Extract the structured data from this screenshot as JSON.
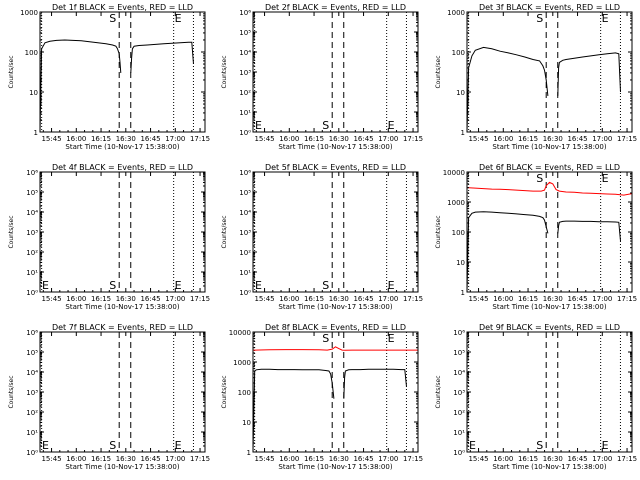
{
  "figure": {
    "xlabel": "Start Time (10-Nov-17 15:38:00)",
    "ylabel": "Counts/sec",
    "x_ticks": [
      "15:45",
      "16:00",
      "16:15",
      "16:30",
      "16:45",
      "17:00",
      "17:15"
    ],
    "x_tick_minutes": [
      7,
      22,
      37,
      52,
      67,
      82,
      97
    ],
    "x_range_minutes": [
      0,
      100
    ],
    "start_marker_minutes": [
      48,
      55
    ],
    "end_marker_minutes": [
      81,
      93
    ],
    "start_marker_label": "S",
    "end_marker_label": "E",
    "colors": {
      "events": "#000000",
      "lld": "#ff0000"
    }
  },
  "chart_data": [
    {
      "type": "line",
      "title": "Det 1f BLACK = Events, RED = LLD",
      "yscale": "log",
      "ylim": [
        1,
        1000
      ],
      "ytick_values": [
        1,
        10,
        100,
        1000
      ],
      "ytick_labels": [
        "1",
        "10",
        "100",
        "1000"
      ],
      "series": [
        {
          "color": "#000000",
          "segments": [
            {
              "x": [
                0,
                1,
                3,
                6,
                10,
                15,
                20,
                25,
                30,
                35,
                40,
                44,
                46,
                47,
                48,
                48.5,
                49
              ],
              "y": [
                1,
                120,
                170,
                185,
                195,
                200,
                195,
                190,
                180,
                170,
                160,
                150,
                140,
                120,
                90,
                55,
                30
              ]
            },
            {
              "x": [
                55,
                55.5,
                56,
                57,
                60,
                65,
                70,
                75,
                80,
                85,
                90,
                92,
                93
              ],
              "y": [
                30,
                70,
                120,
                140,
                145,
                150,
                155,
                160,
                165,
                170,
                175,
                175,
                50
              ]
            }
          ]
        }
      ],
      "marker_labels_row": "top"
    },
    {
      "type": "line",
      "title": "Det 2f BLACK = Events, RED = LLD",
      "yscale": "log",
      "ylim": [
        1,
        1000000
      ],
      "ytick_values": [
        1,
        10,
        100,
        1000,
        10000,
        100000,
        1000000
      ],
      "ytick_labels": [
        "10⁰",
        "10¹",
        "10²",
        "10³",
        "10⁴",
        "10⁵",
        "10⁶"
      ],
      "series": [],
      "marker_labels_row": "bottom"
    },
    {
      "type": "line",
      "title": "Det 3f BLACK = Events, RED = LLD",
      "yscale": "log",
      "ylim": [
        1,
        1000
      ],
      "ytick_values": [
        1,
        10,
        100,
        1000
      ],
      "ytick_labels": [
        "1",
        "10",
        "100",
        "1000"
      ],
      "series": [
        {
          "color": "#000000",
          "segments": [
            {
              "x": [
                0,
                1,
                3,
                5,
                10,
                15,
                20,
                25,
                30,
                35,
                40,
                44,
                46,
                47,
                48,
                49
              ],
              "y": [
                1,
                40,
                80,
                110,
                130,
                120,
                105,
                95,
                85,
                75,
                65,
                60,
                45,
                35,
                20,
                8
              ]
            },
            {
              "x": [
                55,
                55.5,
                56,
                58,
                60,
                65,
                70,
                75,
                80,
                85,
                90,
                92,
                93
              ],
              "y": [
                8,
                40,
                55,
                62,
                65,
                70,
                75,
                80,
                85,
                90,
                95,
                90,
                10
              ]
            }
          ]
        }
      ],
      "marker_labels_row": "top"
    },
    {
      "type": "line",
      "title": "Det 4f BLACK = Events, RED = LLD",
      "yscale": "log",
      "ylim": [
        1,
        1000000
      ],
      "ytick_values": [
        1,
        10,
        100,
        1000,
        10000,
        100000,
        1000000
      ],
      "ytick_labels": [
        "10⁰",
        "10¹",
        "10²",
        "10³",
        "10⁴",
        "10⁵",
        "10⁶"
      ],
      "series": [],
      "marker_labels_row": "bottom"
    },
    {
      "type": "line",
      "title": "Det 5f BLACK = Events, RED = LLD",
      "yscale": "log",
      "ylim": [
        1,
        1000000
      ],
      "ytick_values": [
        1,
        10,
        100,
        1000,
        10000,
        100000,
        1000000
      ],
      "ytick_labels": [
        "10⁰",
        "10¹",
        "10²",
        "10³",
        "10⁴",
        "10⁵",
        "10⁶"
      ],
      "series": [],
      "marker_labels_row": "bottom"
    },
    {
      "type": "line",
      "title": "Det 6f BLACK = Events, RED = LLD",
      "yscale": "log",
      "ylim": [
        1,
        10000
      ],
      "ytick_values": [
        1,
        10,
        100,
        1000,
        10000
      ],
      "ytick_labels": [
        "1",
        "10",
        "100",
        "1000",
        "10000"
      ],
      "series": [
        {
          "color": "#ff0000",
          "segments": [
            {
              "x": [
                0,
                1,
                5,
                10,
                15,
                20,
                25,
                30,
                35,
                40,
                45,
                47,
                48,
                50,
                52,
                54,
                56,
                60,
                65,
                70,
                75,
                80,
                85,
                90,
                95,
                100
              ],
              "y": [
                3000,
                3000,
                2900,
                2800,
                2700,
                2650,
                2600,
                2500,
                2400,
                2300,
                2300,
                2500,
                3500,
                4500,
                4000,
                2600,
                2300,
                2150,
                2100,
                2000,
                1950,
                1900,
                1850,
                1800,
                1700,
                1900
              ]
            }
          ]
        },
        {
          "color": "#000000",
          "segments": [
            {
              "x": [
                0,
                1,
                3,
                5,
                10,
                15,
                20,
                25,
                30,
                35,
                40,
                44,
                46,
                47,
                48,
                49
              ],
              "y": [
                1,
                300,
                420,
                460,
                470,
                460,
                440,
                420,
                400,
                380,
                360,
                330,
                300,
                250,
                150,
                90
              ]
            },
            {
              "x": [
                55,
                55.5,
                56,
                58,
                60,
                65,
                70,
                75,
                80,
                85,
                90,
                92,
                93
              ],
              "y": [
                90,
                160,
                210,
                225,
                230,
                230,
                225,
                225,
                220,
                220,
                215,
                210,
                50
              ]
            }
          ]
        }
      ],
      "marker_labels_row": "top"
    },
    {
      "type": "line",
      "title": "Det 7f BLACK = Events, RED = LLD",
      "yscale": "log",
      "ylim": [
        1,
        1000000
      ],
      "ytick_values": [
        1,
        10,
        100,
        1000,
        10000,
        100000,
        1000000
      ],
      "ytick_labels": [
        "10⁰",
        "10¹",
        "10²",
        "10³",
        "10⁴",
        "10⁵",
        "10⁶"
      ],
      "series": [],
      "marker_labels_row": "bottom"
    },
    {
      "type": "line",
      "title": "Det 8f BLACK = Events, RED = LLD",
      "yscale": "log",
      "ylim": [
        1,
        10000
      ],
      "ytick_values": [
        1,
        10,
        100,
        1000,
        10000
      ],
      "ytick_labels": [
        "1",
        "10",
        "100",
        "1000",
        "10000"
      ],
      "series": [
        {
          "color": "#ff0000",
          "segments": [
            {
              "x": [
                0,
                1,
                10,
                20,
                30,
                40,
                45,
                48,
                50,
                52,
                54,
                56,
                60,
                70,
                80,
                90,
                100
              ],
              "y": [
                2500,
                2500,
                2550,
                2600,
                2600,
                2550,
                2500,
                2700,
                3200,
                2800,
                2500,
                2450,
                2500,
                2500,
                2500,
                2500,
                2500
              ]
            }
          ]
        },
        {
          "color": "#000000",
          "segments": [
            {
              "x": [
                0,
                1,
                2,
                5,
                10,
                15,
                20,
                25,
                30,
                35,
                40,
                44,
                46,
                47,
                48,
                49
              ],
              "y": [
                1,
                500,
                550,
                570,
                570,
                560,
                560,
                560,
                550,
                550,
                550,
                520,
                500,
                400,
                200,
                60
              ]
            },
            {
              "x": [
                55,
                55.5,
                56,
                58,
                60,
                65,
                70,
                75,
                80,
                85,
                90,
                92,
                93
              ],
              "y": [
                60,
                300,
                500,
                550,
                560,
                560,
                570,
                570,
                570,
                570,
                560,
                560,
                150
              ]
            }
          ]
        }
      ],
      "marker_labels_row": "top"
    },
    {
      "type": "line",
      "title": "Det 9f BLACK = Events, RED = LLD",
      "yscale": "log",
      "ylim": [
        1,
        1000000
      ],
      "ytick_values": [
        1,
        10,
        100,
        1000,
        10000,
        100000,
        1000000
      ],
      "ytick_labels": [
        "10⁰",
        "10¹",
        "10²",
        "10³",
        "10⁴",
        "10⁵",
        "10⁶"
      ],
      "series": [],
      "marker_labels_row": "bottom"
    }
  ]
}
